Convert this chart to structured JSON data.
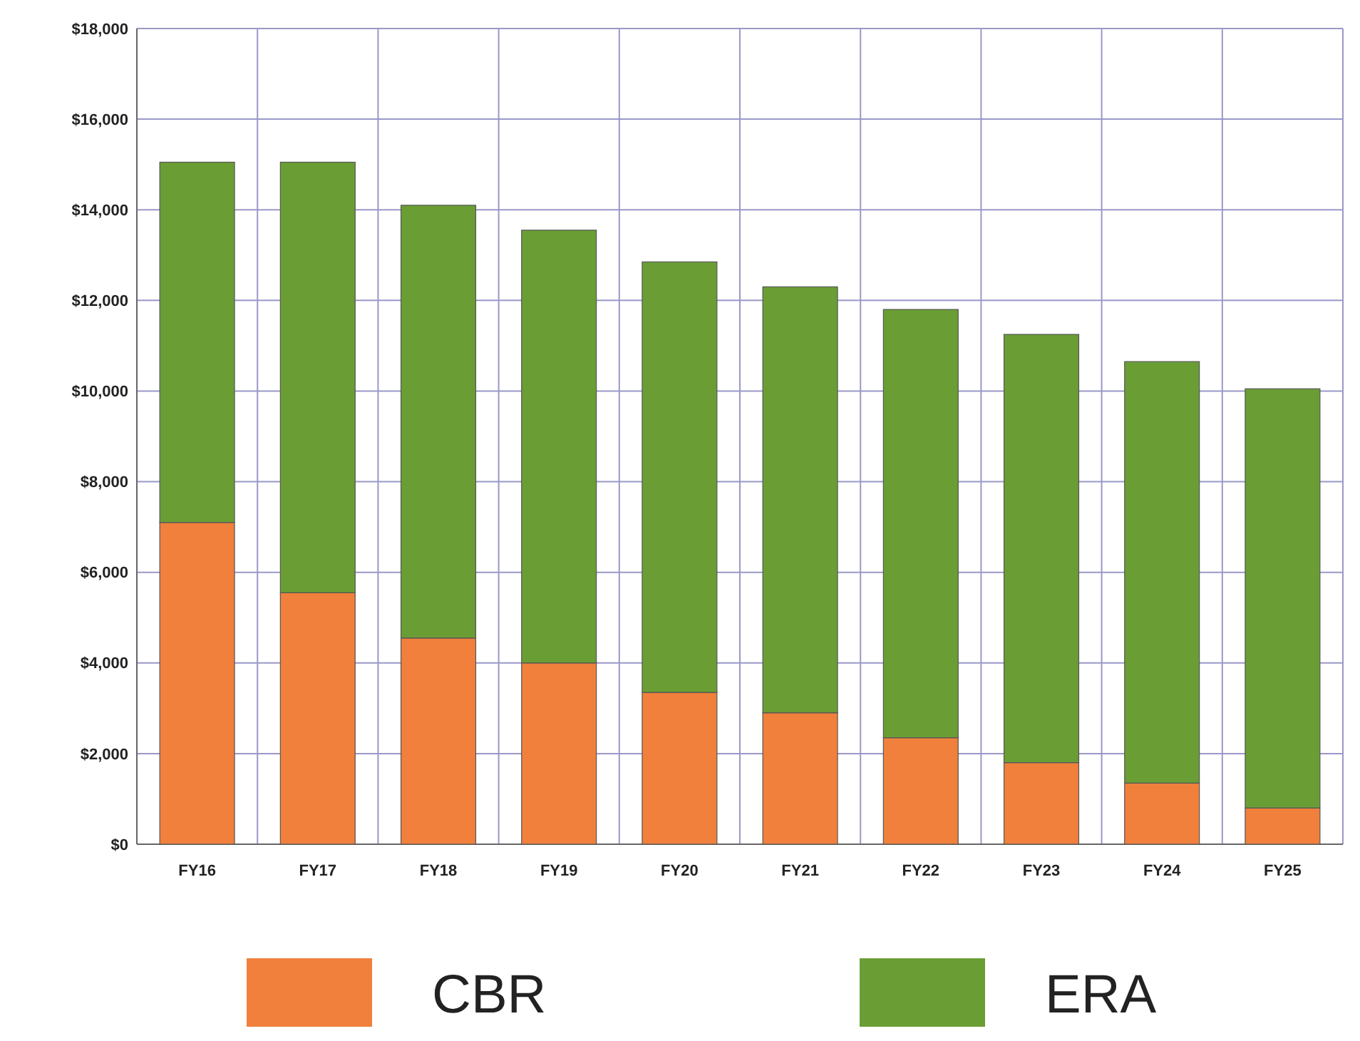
{
  "chart_data": {
    "type": "bar",
    "stacked": true,
    "categories": [
      "FY16",
      "FY17",
      "FY18",
      "FY19",
      "FY20",
      "FY21",
      "FY22",
      "FY23",
      "FY24",
      "FY25"
    ],
    "series": [
      {
        "name": "CBR",
        "color": "#f0803c",
        "values": [
          7100,
          5550,
          4550,
          4000,
          3350,
          2900,
          2350,
          1800,
          1350,
          800
        ]
      },
      {
        "name": "ERA",
        "color": "#6a9e34",
        "values": [
          7950,
          9500,
          9550,
          9550,
          9500,
          9400,
          9450,
          9450,
          9300,
          9250
        ]
      }
    ],
    "ylim": [
      0,
      18000
    ],
    "yticks": [
      {
        "value": 0,
        "label": "$0"
      },
      {
        "value": 2000,
        "label": "$2,000"
      },
      {
        "value": 4000,
        "label": "$4,000"
      },
      {
        "value": 6000,
        "label": "$6,000"
      },
      {
        "value": 8000,
        "label": "$8,000"
      },
      {
        "value": 10000,
        "label": "$10,000"
      },
      {
        "value": 12000,
        "label": "$12,000"
      },
      {
        "value": 14000,
        "label": "$14,000"
      },
      {
        "value": 16000,
        "label": "$16,000"
      },
      {
        "value": 18000,
        "label": "$18,000"
      }
    ],
    "grid": true,
    "legend": "bottom"
  }
}
